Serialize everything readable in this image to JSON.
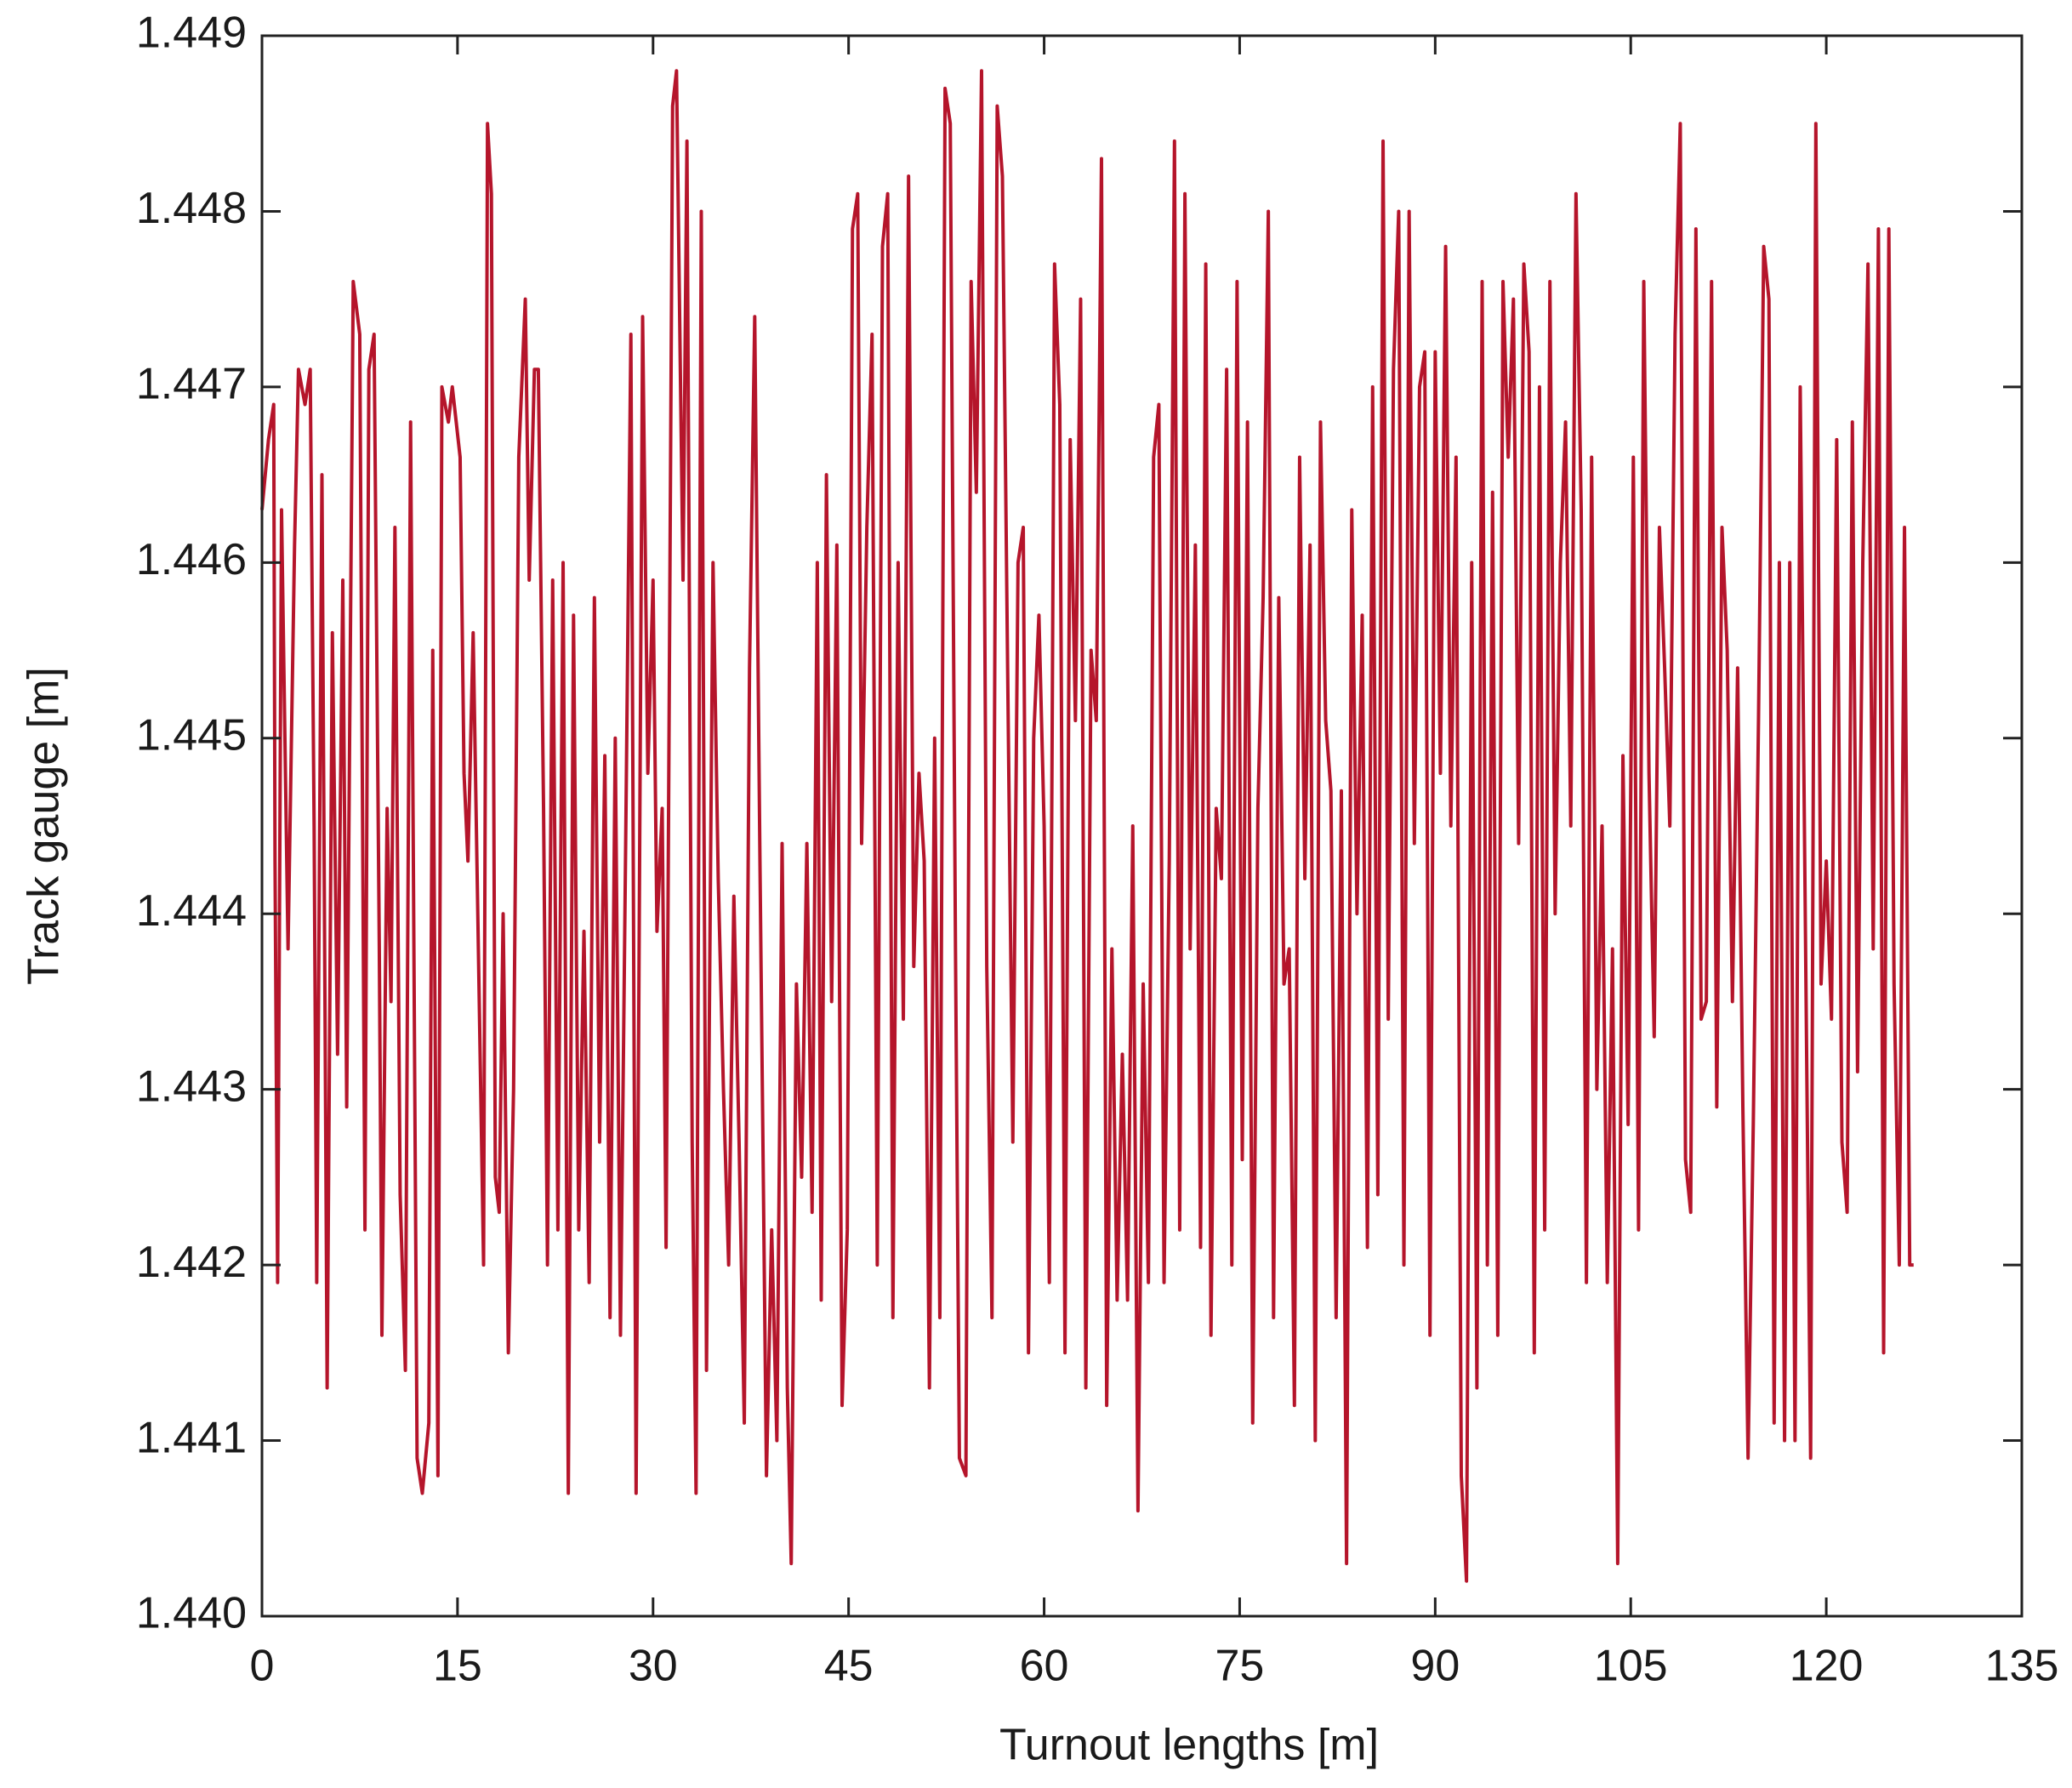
{
  "chart_data": {
    "type": "line",
    "xlabel": "Turnout lengths [m]",
    "ylabel": "Track gauge [m]",
    "color": "#b5152b",
    "xlim": [
      0,
      135
    ],
    "xticks": [
      0,
      15,
      30,
      45,
      60,
      75,
      90,
      105,
      120,
      135
    ],
    "ylim": [
      1.44,
      1.449
    ],
    "yticks": [
      {
        "value": 1.44,
        "label": "1.440"
      },
      1.441,
      1.442,
      1.443,
      1.444,
      1.445,
      1.446,
      1.447,
      1.448,
      1.449
    ],
    "x": [
      0,
      0.5,
      0.9,
      1.0,
      1.2,
      1.5,
      2.0,
      2.5,
      2.8,
      3.3,
      3.7,
      4.0,
      4.2,
      4.6,
      5.0,
      5.4,
      5.8,
      6.2,
      6.5,
      7.0,
      7.5,
      7.9,
      8.2,
      8.6,
      9.0,
      9.2,
      9.6,
      9.9,
      10.2,
      10.6,
      11.0,
      11.4,
      11.9,
      12.3,
      12.8,
      13.1,
      13.5,
      13.8,
      14.3,
      14.6,
      15.2,
      15.5,
      15.8,
      16.2,
      16.6,
      17.0,
      17.3,
      17.6,
      17.9,
      18.2,
      18.5,
      18.9,
      19.3,
      19.7,
      20.2,
      20.5,
      20.9,
      21.2,
      21.6,
      21.9,
      22.3,
      22.7,
      23.1,
      23.5,
      23.9,
      24.3,
      24.7,
      25.1,
      25.5,
      25.9,
      26.3,
      26.7,
      27.1,
      27.5,
      27.9,
      28.3,
      28.7,
      29.2,
      29.6,
      30.0,
      30.3,
      30.7,
      31.0,
      31.5,
      31.8,
      32.3,
      32.6,
      33.0,
      33.3,
      33.7,
      34.1,
      34.6,
      35.0,
      35.4,
      35.8,
      36.2,
      36.6,
      37.0,
      37.4,
      37.8,
      38.2,
      38.7,
      39.1,
      39.5,
      39.9,
      40.3,
      40.6,
      41.0,
      41.4,
      41.8,
      42.2,
      42.6,
      42.9,
      43.3,
      43.7,
      44.1,
      44.5,
      44.9,
      45.3,
      45.7,
      46.0,
      46.4,
      46.8,
      47.2,
      47.6,
      48.0,
      48.4,
      48.8,
      49.2,
      49.6,
      50.0,
      50.4,
      50.8,
      51.2,
      51.6,
      52.0,
      52.4,
      52.8,
      53.2,
      53.5,
      54.0,
      54.4,
      54.8,
      55.2,
      55.6,
      56.0,
      56.4,
      56.8,
      57.2,
      57.6,
      58.0,
      58.4,
      58.8,
      59.2,
      59.6,
      60.0,
      60.4,
      60.8,
      61.2,
      61.6,
      62.0,
      62.4,
      62.8,
      63.2,
      63.6,
      64.0,
      64.4,
      64.8,
      65.2,
      65.6,
      66.0,
      66.4,
      66.8,
      67.2,
      67.6,
      68.0,
      68.4,
      68.8,
      69.2,
      69.6,
      70.0,
      70.4,
      70.8,
      71.2,
      71.6,
      72.0,
      72.4,
      72.8,
      73.2,
      73.6,
      74.0,
      74.4,
      74.8,
      75.2,
      75.6,
      76.0,
      76.4,
      76.8,
      77.2,
      77.6,
      78.0,
      78.4,
      78.8,
      79.2,
      79.6,
      80.0,
      80.4,
      80.8,
      81.2,
      81.6,
      82.0,
      82.4,
      82.8,
      83.2,
      83.6,
      84.0,
      84.4,
      84.8,
      85.2,
      85.6,
      86.0,
      86.4,
      86.8,
      87.2,
      87.6,
      88.0,
      88.4,
      88.8,
      89.2,
      89.6,
      90.0,
      90.4,
      90.8,
      91.2,
      91.6,
      92.0,
      92.4,
      92.8,
      93.2,
      93.6,
      94.0,
      94.4,
      94.8,
      95.2,
      95.6,
      96.0,
      96.4,
      96.8,
      97.2,
      97.6,
      98.0,
      98.4,
      98.8,
      99.2,
      99.6,
      100.0,
      100.4,
      100.8,
      101.2,
      101.6,
      102.0,
      102.4,
      102.8,
      103.2,
      103.6,
      104.0,
      104.4,
      104.8,
      105.2,
      105.6,
      106.0,
      106.4,
      106.8,
      107.2,
      107.6,
      108.0,
      108.4,
      108.8,
      109.2,
      109.6,
      110.0,
      110.4,
      110.8,
      111.2,
      111.6,
      112.0,
      112.4,
      112.8,
      113.2,
      113.6,
      114.0,
      114.4,
      114.8,
      115.2,
      115.6,
      116.0,
      116.4,
      116.8,
      117.2,
      117.6,
      118.0,
      118.4,
      118.8,
      119.2,
      119.6,
      120.0,
      120.4,
      120.8,
      121.2,
      121.6,
      122.0,
      122.4,
      122.8,
      123.2,
      123.6,
      124.0,
      124.4,
      124.8,
      125.2,
      125.6,
      126.0,
      126.4,
      126.7
    ],
    "values": [
      1.4463,
      1.4467,
      1.4469,
      1.4443,
      1.4419,
      1.4463,
      1.4438,
      1.4461,
      1.4471,
      1.4469,
      1.4471,
      1.4445,
      1.4419,
      1.4465,
      1.4413,
      1.4456,
      1.4432,
      1.4459,
      1.4429,
      1.4476,
      1.4473,
      1.4422,
      1.4471,
      1.4473,
      1.4438,
      1.4416,
      1.4446,
      1.4435,
      1.4462,
      1.4424,
      1.4414,
      1.4468,
      1.4409,
      1.4407,
      1.4411,
      1.4455,
      1.4408,
      1.447,
      1.4468,
      1.447,
      1.4466,
      1.4448,
      1.4443,
      1.4456,
      1.4438,
      1.442,
      1.4485,
      1.4481,
      1.4425,
      1.4423,
      1.444,
      1.4415,
      1.443,
      1.4466,
      1.4475,
      1.4459,
      1.4471,
      1.4471,
      1.4446,
      1.442,
      1.4459,
      1.4422,
      1.446,
      1.4407,
      1.4457,
      1.4422,
      1.4439,
      1.4419,
      1.4458,
      1.4427,
      1.4449,
      1.4417,
      1.445,
      1.4416,
      1.4444,
      1.4473,
      1.4407,
      1.4474,
      1.4448,
      1.4459,
      1.4439,
      1.4446,
      1.4421,
      1.4486,
      1.4488,
      1.4459,
      1.4484,
      1.4427,
      1.4407,
      1.448,
      1.4414,
      1.446,
      1.4442,
      1.443,
      1.442,
      1.4441,
      1.4427,
      1.4411,
      1.4454,
      1.4474,
      1.4443,
      1.4408,
      1.4422,
      1.441,
      1.4444,
      1.4413,
      1.4403,
      1.4436,
      1.4425,
      1.4444,
      1.4423,
      1.446,
      1.4418,
      1.4465,
      1.4435,
      1.4461,
      1.4412,
      1.4422,
      1.4479,
      1.4481,
      1.4444,
      1.4462,
      1.4473,
      1.442,
      1.4478,
      1.4481,
      1.4417,
      1.446,
      1.4434,
      1.4482,
      1.4437,
      1.4448,
      1.4443,
      1.4413,
      1.445,
      1.4417,
      1.4487,
      1.4485,
      1.4438,
      1.4409,
      1.4408,
      1.4476,
      1.4464,
      1.4488,
      1.4437,
      1.4417,
      1.4486,
      1.4482,
      1.4454,
      1.4427,
      1.446,
      1.4462,
      1.4415,
      1.445,
      1.4457,
      1.4445,
      1.4419,
      1.4477,
      1.4469,
      1.4415,
      1.4467,
      1.4451,
      1.4475,
      1.4413,
      1.4455,
      1.4451,
      1.4483,
      1.4412,
      1.4438,
      1.4418,
      1.4432,
      1.4418,
      1.4445,
      1.4406,
      1.4436,
      1.4419,
      1.4466,
      1.4469,
      1.4419,
      1.4443,
      1.4484,
      1.4422,
      1.4481,
      1.4438,
      1.4461,
      1.4421,
      1.4477,
      1.4416,
      1.4446,
      1.4442,
      1.4471,
      1.442,
      1.4476,
      1.4426,
      1.4468,
      1.4411,
      1.4446,
      1.4458,
      1.448,
      1.4417,
      1.4458,
      1.4436,
      1.4438,
      1.4412,
      1.4466,
      1.4442,
      1.4461,
      1.441,
      1.4468,
      1.4451,
      1.4447,
      1.4417,
      1.4447,
      1.4403,
      1.4463,
      1.444,
      1.4457,
      1.4421,
      1.447,
      1.4424,
      1.4484,
      1.4434,
      1.4471,
      1.448,
      1.442,
      1.448,
      1.4444,
      1.447,
      1.4472,
      1.4416,
      1.4472,
      1.4448,
      1.4478,
      1.4445,
      1.4466,
      1.4408,
      1.4402,
      1.446,
      1.4413,
      1.4476,
      1.442,
      1.4464,
      1.4416,
      1.4476,
      1.4466,
      1.4475,
      1.4444,
      1.4477,
      1.4472,
      1.4415,
      1.447,
      1.4422,
      1.4476,
      1.444,
      1.446,
      1.4468,
      1.4445,
      1.4481,
      1.4463,
      1.4419,
      1.4466,
      1.443,
      1.4445,
      1.4419,
      1.4438,
      1.4403,
      1.4449,
      1.4428,
      1.4466,
      1.4422,
      1.4476,
      1.4448,
      1.4433,
      1.4462,
      1.4454,
      1.4445,
      1.4473,
      1.4485,
      1.4426,
      1.4423,
      1.4479,
      1.4434,
      1.4435,
      1.4476,
      1.4429,
      1.4462,
      1.4455,
      1.4435,
      1.4454,
      1.4429,
      1.4409,
      1.4428,
      1.4451,
      1.4478,
      1.4475,
      1.4411,
      1.446,
      1.441,
      1.446,
      1.441,
      1.447,
      1.4439,
      1.4409,
      1.4485,
      1.4436,
      1.4443,
      1.4434,
      1.4467,
      1.4427,
      1.4423,
      1.4468,
      1.4431,
      1.446,
      1.4477,
      1.4438,
      1.4479,
      1.4415,
      1.4479,
      1.4436,
      1.442,
      1.4462,
      1.442,
      1.442
    ]
  }
}
